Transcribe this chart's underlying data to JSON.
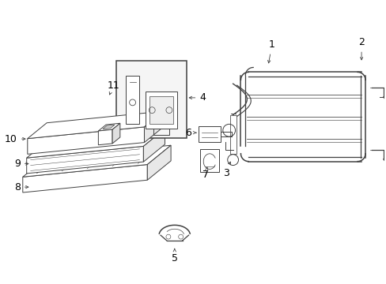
{
  "background_color": "#ffffff",
  "line_color": "#404040",
  "label_color": "#000000",
  "fig_width": 4.89,
  "fig_height": 3.6,
  "dpi": 100
}
